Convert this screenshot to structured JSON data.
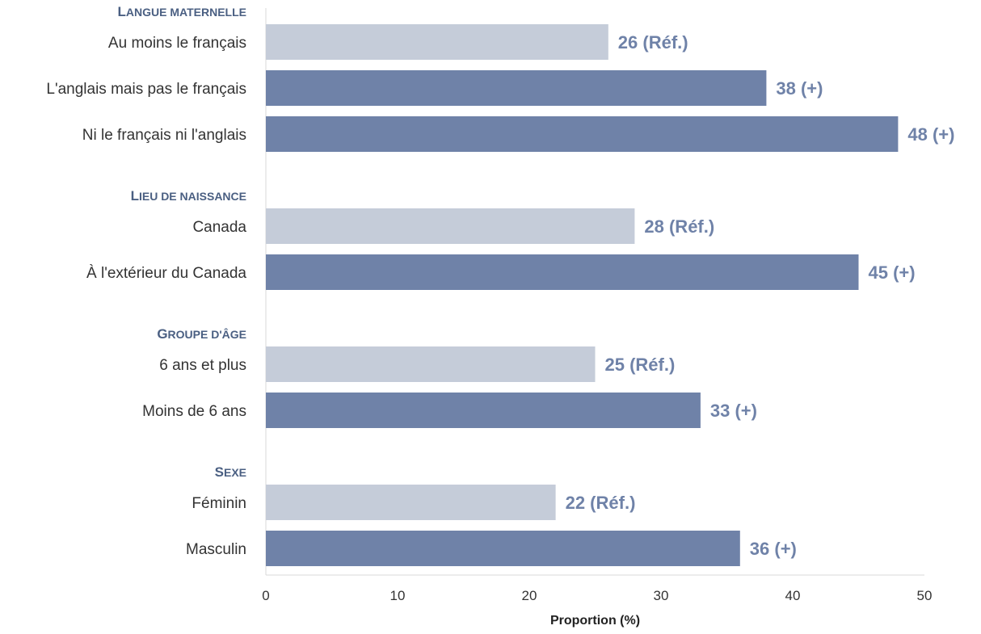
{
  "chart_data": {
    "type": "bar",
    "orientation": "horizontal",
    "groups": [
      {
        "name": "Langue maternelle",
        "display": [
          "L",
          "angue maternelle"
        ],
        "items": [
          {
            "label": "Au moins le français",
            "value": 26,
            "value_label": "26 (Réf.)",
            "reference": true
          },
          {
            "label": "L'anglais mais pas le français",
            "value": 38,
            "value_label": "38 (+)",
            "reference": false
          },
          {
            "label": "Ni le français ni l'anglais",
            "value": 48,
            "value_label": "48 (+)",
            "reference": false
          }
        ]
      },
      {
        "name": "Lieu de naissance",
        "display": [
          "L",
          "ieu de naissance"
        ],
        "items": [
          {
            "label": "Canada",
            "value": 28,
            "value_label": "28 (Réf.)",
            "reference": true
          },
          {
            "label": "À l'extérieur du Canada",
            "value": 45,
            "value_label": "45 (+)",
            "reference": false
          }
        ]
      },
      {
        "name": "Groupe d'âge",
        "display": [
          "G",
          "roupe d'âge"
        ],
        "items": [
          {
            "label": "6 ans et plus",
            "value": 25,
            "value_label": "25 (Réf.)",
            "reference": true
          },
          {
            "label": "Moins de 6 ans",
            "value": 33,
            "value_label": "33 (+)",
            "reference": false
          }
        ]
      },
      {
        "name": "Sexe",
        "display": [
          "S",
          "exe"
        ],
        "items": [
          {
            "label": "Féminin",
            "value": 22,
            "value_label": "22 (Réf.)",
            "reference": true
          },
          {
            "label": "Masculin",
            "value": 36,
            "value_label": "36 (+)",
            "reference": false
          }
        ]
      }
    ],
    "xlabel": "Proportion (%)",
    "xlim": [
      0,
      50
    ],
    "xticks": [
      0,
      10,
      20,
      30,
      40,
      50
    ],
    "grid": false,
    "legend": "none",
    "colors": {
      "reference_bar": "#c5ccd9",
      "other_bar": "#6f82a8",
      "value_label": "#6f82a8",
      "group_heading": "#4a5f82",
      "axis": "#d9d9d9"
    }
  }
}
